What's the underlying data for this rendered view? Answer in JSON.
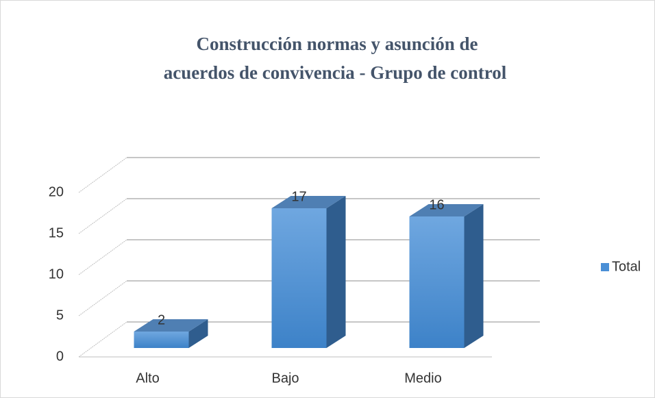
{
  "chart_data": {
    "type": "bar3d",
    "title": [
      "Construcción normas y asunción de",
      "acuerdos de convivencia - Grupo de control"
    ],
    "categories": [
      "Alto",
      "Bajo",
      "Medio"
    ],
    "series": [
      {
        "name": "Total",
        "color": "#4a8fd6",
        "values": [
          2,
          17,
          16
        ]
      }
    ],
    "ylim": [
      0,
      20
    ],
    "yticks": [
      0,
      5,
      10,
      15,
      20
    ],
    "grid": true,
    "legend": "right"
  }
}
